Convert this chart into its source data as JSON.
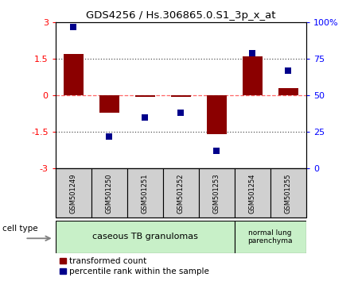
{
  "title": "GDS4256 / Hs.306865.0.S1_3p_x_at",
  "samples": [
    "GSM501249",
    "GSM501250",
    "GSM501251",
    "GSM501252",
    "GSM501253",
    "GSM501254",
    "GSM501255"
  ],
  "red_values": [
    1.7,
    -0.7,
    -0.05,
    -0.05,
    -1.6,
    1.6,
    0.3
  ],
  "blue_values": [
    97,
    22,
    35,
    38,
    12,
    79,
    67
  ],
  "ylim_left": [
    -3,
    3
  ],
  "ylim_right": [
    0,
    100
  ],
  "yticks_left": [
    -3,
    -1.5,
    0,
    1.5,
    3
  ],
  "yticks_right": [
    0,
    25,
    50,
    75,
    100
  ],
  "ytick_labels_left": [
    "-3",
    "-1.5",
    "0",
    "1.5",
    "3"
  ],
  "ytick_labels_right": [
    "0",
    "25",
    "50",
    "75",
    "100%"
  ],
  "red_color": "#8B0000",
  "blue_color": "#00008B",
  "dashed_line_color": "#FF6666",
  "dotted_line_color": "#555555",
  "cell_type_label": "cell type",
  "group1_label": "caseous TB granulomas",
  "group2_label": "normal lung\nparenchyma",
  "legend_red": "transformed count",
  "legend_blue": "percentile rank within the sample",
  "bar_width": 0.55,
  "marker_size": 6,
  "group1_color": "#c8f0c8",
  "group2_color": "#c8f0c8",
  "label_bg": "#d0d0d0"
}
